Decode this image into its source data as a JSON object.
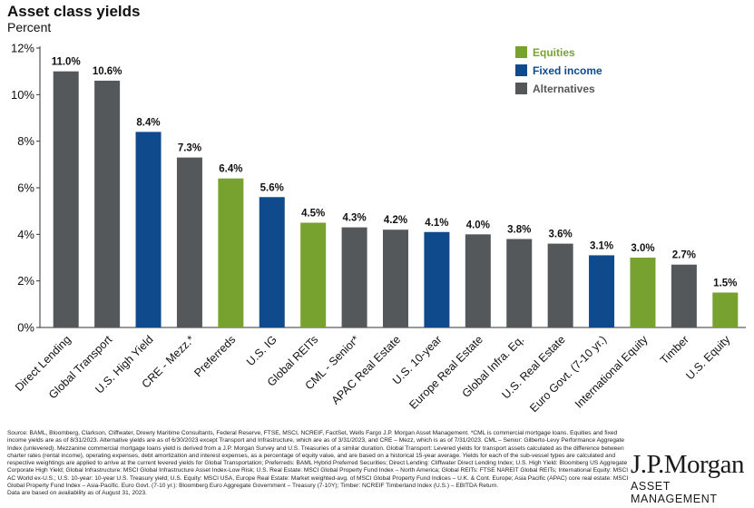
{
  "chart_data": {
    "type": "bar",
    "title": "Asset class yields",
    "subtitle": "Percent",
    "categories": [
      "Direct Lending",
      "Global Transport",
      "U.S. High Yield",
      "CRE - Mezz.*",
      "Preferreds",
      "U.S. IG",
      "Global REITs",
      "CML - Senior*",
      "APAC Real Estate",
      "U.S. 10-year",
      "Europe Real Estate",
      "Global Infra. Eq.",
      "U.S. Real Estate",
      "Euro Govt. (7-10 yr.)",
      "International Equity",
      "Timber",
      "U.S. Equity"
    ],
    "values": [
      11.0,
      10.6,
      8.4,
      7.3,
      6.4,
      5.6,
      4.5,
      4.3,
      4.2,
      4.1,
      4.0,
      3.8,
      3.6,
      3.1,
      3.0,
      2.7,
      1.5
    ],
    "data_labels": [
      "11.0%",
      "10.6%",
      "8.4%",
      "7.3%",
      "6.4%",
      "5.6%",
      "4.5%",
      "4.3%",
      "4.2%",
      "4.1%",
      "4.0%",
      "3.8%",
      "3.6%",
      "3.1%",
      "3.0%",
      "2.7%",
      "1.5%"
    ],
    "groups": [
      "Alternatives",
      "Alternatives",
      "Fixed income",
      "Alternatives",
      "Equities",
      "Fixed income",
      "Equities",
      "Alternatives",
      "Alternatives",
      "Fixed income",
      "Alternatives",
      "Alternatives",
      "Alternatives",
      "Fixed income",
      "Equities",
      "Alternatives",
      "Equities"
    ],
    "legend": [
      {
        "name": "Equities",
        "color": "#78a22f"
      },
      {
        "name": "Fixed income",
        "color": "#0e4a8c"
      },
      {
        "name": "Alternatives",
        "color": "#54585a"
      }
    ],
    "legend_position": "top-right",
    "ylim": [
      0,
      12
    ],
    "yticks": [
      0,
      2,
      4,
      6,
      8,
      10,
      12
    ],
    "ytick_labels": [
      "0%",
      "2%",
      "4%",
      "6%",
      "8%",
      "10%",
      "12%"
    ],
    "grid": false
  },
  "footer": {
    "source": "Source: BAML, Bloomberg, Clarkson, Cliffwater, Drewry Maritime Consultants, Federal Reserve, FTSE, MSCI, NCREIF, FactSet, Wells Fargo J.P. Morgan Asset Management. *CML is commercial mortgage loans. Equities and fixed income yields are as of 8/31/2023. Alternative yields are as of 6/30/2023 except Transport and Infrastructure, which are as of 3/31/2023, and CRE – Mezz, which is as of 7/31/2023. CML – Senior: Gilberto-Levy Performance Aggregate Index (unlevered). Mezzanine commercial mortgage loans yield is derived from a J.P. Morgan Survey and U.S. Treasuries of a similar duration. Global Transport: Levered yields for transport assets calculated as the difference between charter rates (rental income), operating expenses, debt amortization and interest expenses, as a percentage of equity value, and are based on a historical 15-year average. Yields for each of the sub-vessel types are calculated and respective weightings are applied to arrive at the current levered yields for Global Transportation; Preferreds: BAML Hybrid Preferred Securities; Direct Lending: Cliffwater Direct Lending Index; U.S. High Yield: Bloomberg US Aggregate Corporate High Yield; Global Infrastructure: MSCI Global Infrastructure Asset Index-Low Risk; U.S. Real Estate: MSCI Global Property Fund Index – North America; Global REITs: FTSE NAREIT Global REITs; International Equity: MSCI AC World ex-U.S.; U.S. 10-year: 10-year U.S. Treasury yield; U.S. Equity: MSCI USA, Europe Real Estate: Market weighted-avg. of MSCI Global Property Fund Indices – U.K. & Cont. Europe; Asia Pacific (APAC) core real estate: MSCI Global Property Fund Index – Asia-Pacific. Euro Govt. (7-10 yr.): Bloomberg Euro Aggregate Government – Treasury (7-10Y); Timber: NCREIF Timberland Index (U.S.) – EBITDA Return.",
    "as_of": "Data are based on availability as of August 31, 2023."
  },
  "logo": {
    "name": "J.P.Morgan",
    "tagline": "ASSET MANAGEMENT"
  }
}
